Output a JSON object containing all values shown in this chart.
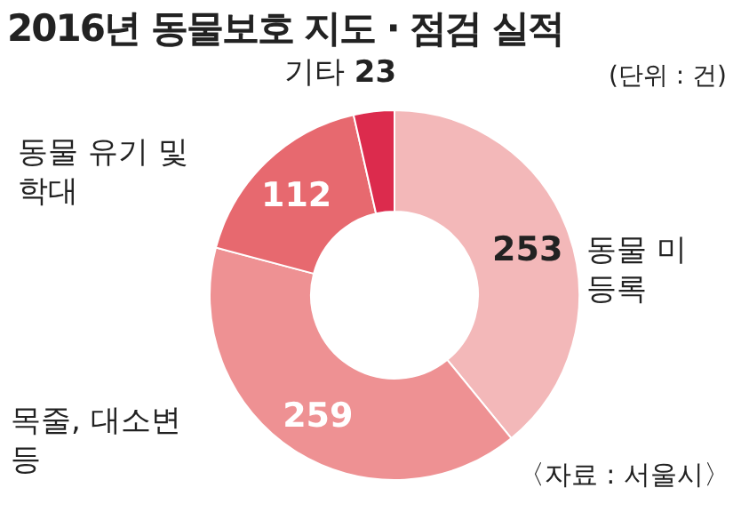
{
  "chart_data": {
    "type": "donut",
    "title": "2016년 동물보호 지도 · 점검 실적",
    "subtitle": "(단위 : 건)",
    "categories": [
      "동물 미등록",
      "목줄, 대소변 등",
      "동물 유기 및 학대",
      "기타"
    ],
    "values": [
      253,
      259,
      112,
      23
    ],
    "colors": [
      "#f3b8b9",
      "#ee9193",
      "#e7696f",
      "#dc2b4d"
    ],
    "data_labels": true,
    "annotations": [
      "〈자료 : 서울시〉"
    ]
  }
}
